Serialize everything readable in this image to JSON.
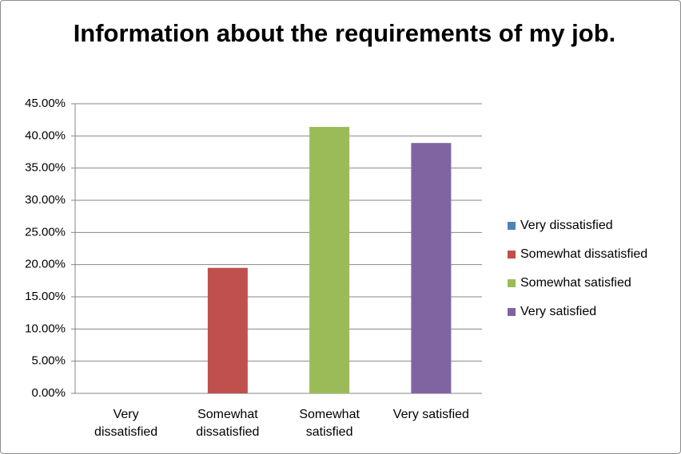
{
  "chart_data": {
    "type": "bar",
    "title": "Information about the requirements of my job.",
    "categories": [
      "Very dissatisfied",
      "Somewhat dissatisfied",
      "Somewhat satisfied",
      "Very satisfied"
    ],
    "values": [
      0,
      19.5,
      41.4,
      38.9
    ],
    "colors": [
      "#4f81bd",
      "#c0504d",
      "#9bbb59",
      "#8064a2"
    ],
    "ylim": [
      0,
      45
    ],
    "yticks": [
      {
        "value": 0,
        "label": "0.00%"
      },
      {
        "value": 5,
        "label": "5.00%"
      },
      {
        "value": 10,
        "label": "10.00%"
      },
      {
        "value": 15,
        "label": "15.00%"
      },
      {
        "value": 20,
        "label": "20.00%"
      },
      {
        "value": 25,
        "label": "25.00%"
      },
      {
        "value": 30,
        "label": "30.00%"
      },
      {
        "value": 35,
        "label": "35.00%"
      },
      {
        "value": 40,
        "label": "40.00%"
      },
      {
        "value": 45,
        "label": "45.00%"
      }
    ],
    "grid": true,
    "legend": "right"
  }
}
